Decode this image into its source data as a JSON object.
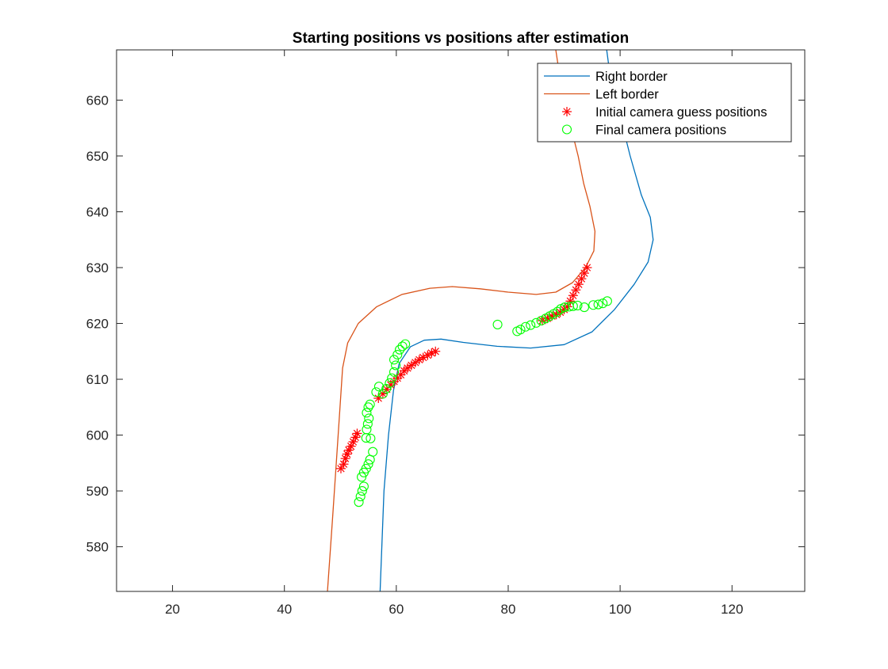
{
  "chart_data": {
    "type": "line",
    "title": "Starting positions vs positions after estimation",
    "xlabel": "",
    "ylabel": "",
    "xlim": [
      10,
      133
    ],
    "ylim": [
      572,
      669
    ],
    "xticks": [
      20,
      40,
      60,
      80,
      100,
      120
    ],
    "yticks": [
      580,
      590,
      600,
      610,
      620,
      630,
      640,
      650,
      660
    ],
    "grid": false,
    "legend_position": "top-right",
    "colors": {
      "right_border": "#0072BD",
      "left_border": "#D95319",
      "initial_guess": "#FF0000",
      "final_positions": "#00FF00",
      "axes": "#262626"
    },
    "series": [
      {
        "name": "Right border",
        "kind": "line",
        "points": [
          [
            57.1,
            572
          ],
          [
            57.8,
            590
          ],
          [
            58.6,
            600
          ],
          [
            59.5,
            608
          ],
          [
            60.5,
            612.8
          ],
          [
            62.5,
            615.8
          ],
          [
            65,
            617
          ],
          [
            68,
            617.2
          ],
          [
            72,
            616.6
          ],
          [
            78,
            615.9
          ],
          [
            84,
            615.6
          ],
          [
            90,
            616.2
          ],
          [
            95,
            618.5
          ],
          [
            99,
            622.5
          ],
          [
            102.5,
            627
          ],
          [
            105,
            631
          ],
          [
            105.9,
            635
          ],
          [
            105.4,
            639
          ],
          [
            103.8,
            643
          ],
          [
            101.8,
            650
          ],
          [
            99.8,
            658
          ],
          [
            98,
            666
          ],
          [
            97.6,
            669
          ]
        ]
      },
      {
        "name": "Left border",
        "kind": "line",
        "points": [
          [
            47.7,
            572
          ],
          [
            48.6,
            585
          ],
          [
            49.6,
            600
          ],
          [
            50.4,
            612
          ],
          [
            51.3,
            616.5
          ],
          [
            53.2,
            620
          ],
          [
            56.5,
            623
          ],
          [
            61,
            625.2
          ],
          [
            66,
            626.3
          ],
          [
            70,
            626.6
          ],
          [
            75,
            626.2
          ],
          [
            80,
            625.6
          ],
          [
            85,
            625.2
          ],
          [
            88.5,
            625.6
          ],
          [
            91.5,
            627.3
          ],
          [
            93.8,
            630
          ],
          [
            95.3,
            633
          ],
          [
            95.5,
            636.5
          ],
          [
            94.6,
            641
          ],
          [
            93.5,
            645
          ],
          [
            92.5,
            650
          ],
          [
            91,
            656
          ],
          [
            89.4,
            663
          ],
          [
            88.5,
            669
          ]
        ]
      },
      {
        "name": "Initial camera guess positions",
        "kind": "marker",
        "marker": "asterisk",
        "points": [
          [
            50.1,
            594
          ],
          [
            50.6,
            594.8
          ],
          [
            50.9,
            595.8
          ],
          [
            51.2,
            596.6
          ],
          [
            51.5,
            597.3
          ],
          [
            51.9,
            598
          ],
          [
            52.3,
            598.8
          ],
          [
            52.7,
            599.6
          ],
          [
            53,
            600.3
          ],
          [
            56.8,
            606.6
          ],
          [
            57.6,
            607.4
          ],
          [
            58.3,
            608.2
          ],
          [
            59,
            609
          ],
          [
            59.6,
            609.6
          ],
          [
            60.2,
            610.2
          ],
          [
            60.8,
            610.8
          ],
          [
            61.4,
            611.5
          ],
          [
            62,
            612
          ],
          [
            62.7,
            612.5
          ],
          [
            63.4,
            613
          ],
          [
            64.1,
            613.5
          ],
          [
            64.8,
            613.9
          ],
          [
            65.6,
            614.3
          ],
          [
            66.3,
            614.7
          ],
          [
            67,
            615
          ],
          [
            86.1,
            620.5
          ],
          [
            87,
            620.9
          ],
          [
            87.8,
            621.3
          ],
          [
            88.6,
            621.6
          ],
          [
            89.3,
            622
          ],
          [
            90,
            622.5
          ],
          [
            90.6,
            623
          ],
          [
            91.1,
            624
          ],
          [
            91.6,
            625
          ],
          [
            92.1,
            626
          ],
          [
            92.6,
            627
          ],
          [
            93.1,
            628
          ],
          [
            93.6,
            629
          ],
          [
            94.1,
            630
          ]
        ]
      },
      {
        "name": "Final camera positions",
        "kind": "marker",
        "marker": "circle",
        "points": [
          [
            53.3,
            588
          ],
          [
            53.6,
            589
          ],
          [
            53.9,
            590
          ],
          [
            54.2,
            590.8
          ],
          [
            53.8,
            592.5
          ],
          [
            54.2,
            593.3
          ],
          [
            54.6,
            594
          ],
          [
            55,
            594.8
          ],
          [
            55.3,
            595.6
          ],
          [
            55.8,
            597
          ],
          [
            54.6,
            599.5
          ],
          [
            55.4,
            599.4
          ],
          [
            54.7,
            601
          ],
          [
            54.9,
            602
          ],
          [
            55.1,
            603
          ],
          [
            54.7,
            604
          ],
          [
            55,
            605
          ],
          [
            55.3,
            605.5
          ],
          [
            56.4,
            607.7
          ],
          [
            56.9,
            608.7
          ],
          [
            57.6,
            607.4
          ],
          [
            58.2,
            608.3
          ],
          [
            58.8,
            609.3
          ],
          [
            59.2,
            610.2
          ],
          [
            59.6,
            611.3
          ],
          [
            59.9,
            612.5
          ],
          [
            59.6,
            613.5
          ],
          [
            60.2,
            614.4
          ],
          [
            60.6,
            615.3
          ],
          [
            61.1,
            615.9
          ],
          [
            61.6,
            616.3
          ],
          [
            78.1,
            619.8
          ],
          [
            81.6,
            618.6
          ],
          [
            82.2,
            618.9
          ],
          [
            83.1,
            619.4
          ],
          [
            84,
            619.7
          ],
          [
            85,
            620.1
          ],
          [
            85.9,
            620.5
          ],
          [
            86.7,
            620.9
          ],
          [
            87.4,
            621.3
          ],
          [
            88.1,
            621.7
          ],
          [
            88.8,
            622.1
          ],
          [
            89.4,
            622.6
          ],
          [
            90.1,
            622.9
          ],
          [
            90.9,
            623
          ],
          [
            91.6,
            623.1
          ],
          [
            92.4,
            623.2
          ],
          [
            93.6,
            622.9
          ],
          [
            95.2,
            623.3
          ],
          [
            96.1,
            623.4
          ],
          [
            96.9,
            623.6
          ],
          [
            97.7,
            624
          ]
        ]
      }
    ]
  }
}
